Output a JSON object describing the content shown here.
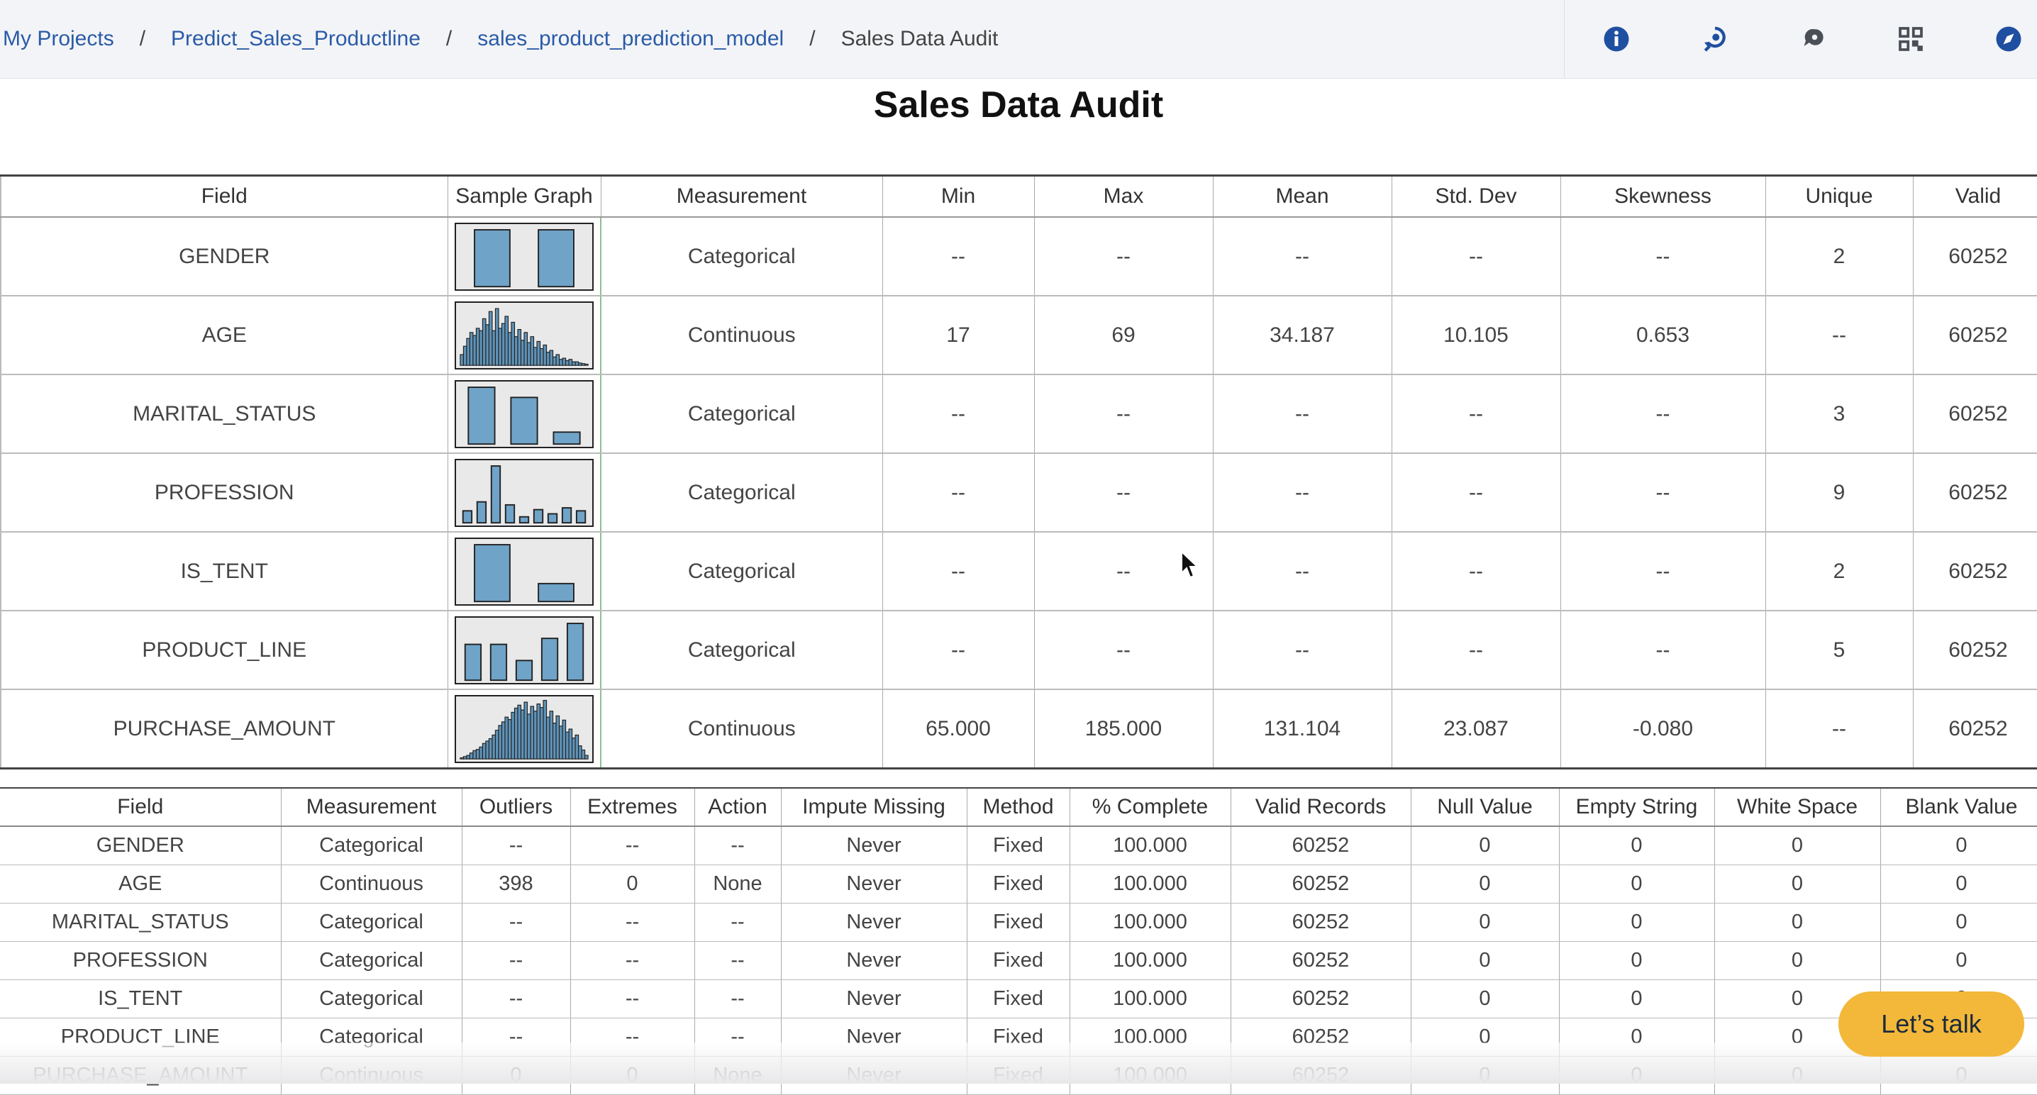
{
  "breadcrumb": {
    "items": [
      "My Projects",
      "Predict_Sales_Productline",
      "sales_product_prediction_model"
    ],
    "separator": "/",
    "current": "Sales Data Audit"
  },
  "toolbar": {
    "icons": [
      "info-icon",
      "rewind-icon",
      "comments-icon",
      "grid-icon",
      "compass-icon"
    ],
    "accent": "#2a5ba8"
  },
  "page_title": "Sales Data Audit",
  "audit_table": {
    "headers": [
      "Field",
      "Sample Graph",
      "Measurement",
      "Min",
      "Max",
      "Mean",
      "Std. Dev",
      "Skewness",
      "Unique",
      "Valid"
    ],
    "rows": [
      {
        "field": "GENDER",
        "measurement": "Categorical",
        "min": "--",
        "max": "--",
        "mean": "--",
        "std": "--",
        "skew": "--",
        "unique": "2",
        "valid": "60252",
        "graph": {
          "type": "bar",
          "values": [
            0.95,
            0.95
          ]
        }
      },
      {
        "field": "AGE",
        "measurement": "Continuous",
        "min": "17",
        "max": "69",
        "mean": "34.187",
        "std": "10.105",
        "skew": "0.653",
        "unique": "--",
        "valid": "60252",
        "graph": {
          "type": "hist",
          "values": [
            0.18,
            0.32,
            0.45,
            0.55,
            0.5,
            0.62,
            0.58,
            0.78,
            0.68,
            0.9,
            0.58,
            0.95,
            0.62,
            0.7,
            0.82,
            0.55,
            0.72,
            0.48,
            0.6,
            0.42,
            0.55,
            0.38,
            0.48,
            0.3,
            0.4,
            0.28,
            0.34,
            0.22,
            0.25,
            0.14,
            0.18,
            0.1,
            0.12,
            0.08,
            0.1,
            0.06,
            0.06,
            0.04,
            0.03,
            0.02
          ]
        }
      },
      {
        "field": "MARITAL_STATUS",
        "measurement": "Categorical",
        "min": "--",
        "max": "--",
        "mean": "--",
        "std": "--",
        "skew": "--",
        "unique": "3",
        "valid": "60252",
        "graph": {
          "type": "bar",
          "values": [
            0.95,
            0.78,
            0.2
          ]
        }
      },
      {
        "field": "PROFESSION",
        "measurement": "Categorical",
        "min": "--",
        "max": "--",
        "mean": "--",
        "std": "--",
        "skew": "--",
        "unique": "9",
        "valid": "60252",
        "graph": {
          "type": "bar",
          "values": [
            0.2,
            0.35,
            0.95,
            0.3,
            0.1,
            0.22,
            0.15,
            0.25,
            0.2
          ]
        }
      },
      {
        "field": "IS_TENT",
        "measurement": "Categorical",
        "min": "--",
        "max": "--",
        "mean": "--",
        "std": "--",
        "skew": "--",
        "unique": "2",
        "valid": "60252",
        "graph": {
          "type": "bar",
          "values": [
            0.95,
            0.3
          ]
        }
      },
      {
        "field": "PRODUCT_LINE",
        "measurement": "Categorical",
        "min": "--",
        "max": "--",
        "mean": "--",
        "std": "--",
        "skew": "--",
        "unique": "5",
        "valid": "60252",
        "graph": {
          "type": "bar",
          "values": [
            0.6,
            0.6,
            0.33,
            0.7,
            0.95
          ]
        }
      },
      {
        "field": "PURCHASE_AMOUNT",
        "measurement": "Continuous",
        "min": "65.000",
        "max": "185.000",
        "mean": "131.104",
        "std": "23.087",
        "skew": "-0.080",
        "unique": "--",
        "valid": "60252",
        "graph": {
          "type": "hist",
          "values": [
            0.02,
            0.04,
            0.06,
            0.1,
            0.14,
            0.16,
            0.2,
            0.26,
            0.3,
            0.34,
            0.4,
            0.48,
            0.56,
            0.62,
            0.7,
            0.66,
            0.78,
            0.85,
            0.9,
            0.82,
            0.95,
            0.75,
            0.88,
            0.8,
            0.92,
            0.86,
            0.98,
            0.7,
            0.8,
            0.6,
            0.72,
            0.55,
            0.65,
            0.45,
            0.5,
            0.35,
            0.4,
            0.22,
            0.15,
            0.06
          ]
        }
      }
    ]
  },
  "quality_table": {
    "headers": [
      "Field",
      "Measurement",
      "Outliers",
      "Extremes",
      "Action",
      "Impute Missing",
      "Method",
      "% Complete",
      "Valid Records",
      "Null Value",
      "Empty String",
      "White Space",
      "Blank Value"
    ],
    "rows": [
      [
        "GENDER",
        "Categorical",
        "--",
        "--",
        "--",
        "Never",
        "Fixed",
        "100.000",
        "60252",
        "0",
        "0",
        "0",
        "0"
      ],
      [
        "AGE",
        "Continuous",
        "398",
        "0",
        "None",
        "Never",
        "Fixed",
        "100.000",
        "60252",
        "0",
        "0",
        "0",
        "0"
      ],
      [
        "MARITAL_STATUS",
        "Categorical",
        "--",
        "--",
        "--",
        "Never",
        "Fixed",
        "100.000",
        "60252",
        "0",
        "0",
        "0",
        "0"
      ],
      [
        "PROFESSION",
        "Categorical",
        "--",
        "--",
        "--",
        "Never",
        "Fixed",
        "100.000",
        "60252",
        "0",
        "0",
        "0",
        "0"
      ],
      [
        "IS_TENT",
        "Categorical",
        "--",
        "--",
        "--",
        "Never",
        "Fixed",
        "100.000",
        "60252",
        "0",
        "0",
        "0",
        "0"
      ],
      [
        "PRODUCT_LINE",
        "Categorical",
        "--",
        "--",
        "--",
        "Never",
        "Fixed",
        "100.000",
        "60252",
        "0",
        "0",
        "0",
        "0"
      ],
      [
        "PURCHASE_AMOUNT",
        "Continuous",
        "0",
        "0",
        "None",
        "Never",
        "Fixed",
        "100.000",
        "60252",
        "0",
        "0",
        "0",
        "0"
      ]
    ]
  },
  "chat_button": {
    "label": "Let’s talk",
    "color": "#f3b83a"
  },
  "graph_colors": {
    "bar": "#6fa3c7",
    "hist": "#5f93b8",
    "stroke": "#222222"
  }
}
